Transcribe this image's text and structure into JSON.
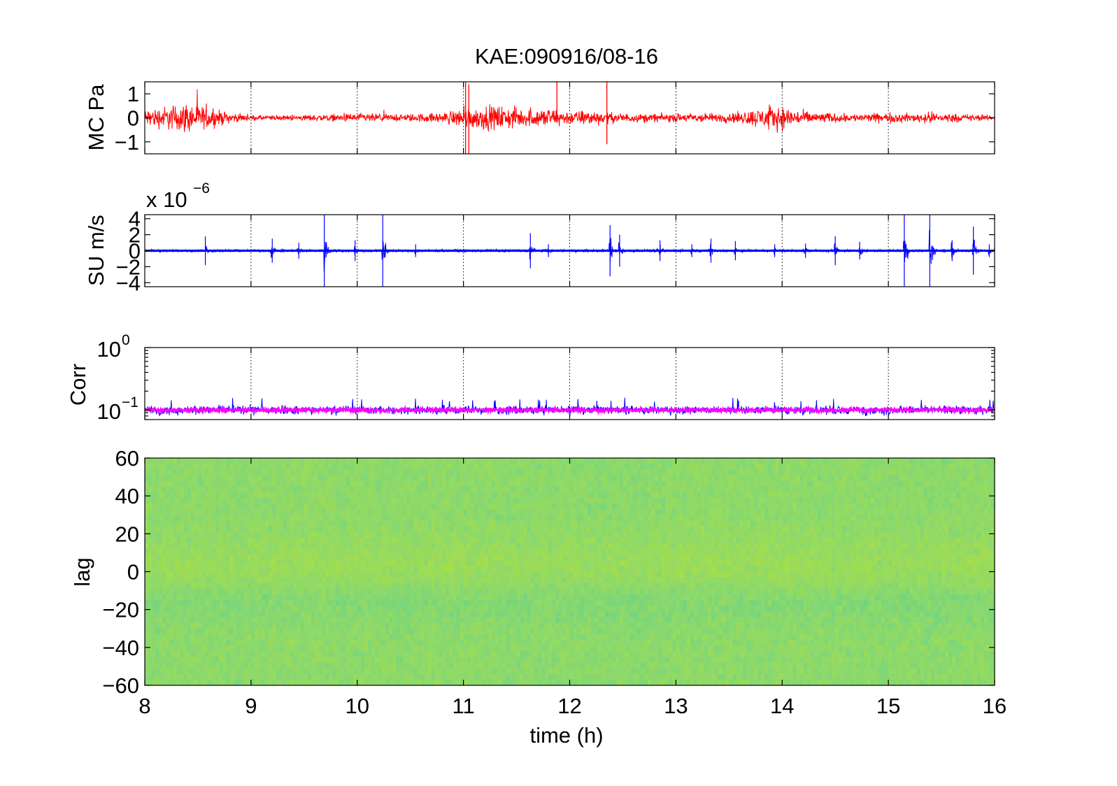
{
  "figure": {
    "title": "KAE:090916/08-16",
    "xlabel": "time (h)"
  },
  "chart_data": [
    {
      "type": "line",
      "name": "panel-mc",
      "ylabel": "MC Pa",
      "xlim": [
        8,
        16
      ],
      "ylim": [
        -1.5,
        1.5
      ],
      "yticks": [
        -1,
        0,
        1
      ],
      "ytick_labels": [
        "−1",
        "0",
        "1"
      ],
      "xticks": [
        8,
        9,
        10,
        11,
        12,
        13,
        14,
        15,
        16
      ],
      "grid_x": true,
      "series": [
        {
          "color": "#ff0000",
          "envelope_x": [
            8.0,
            8.2,
            8.4,
            8.6,
            8.8,
            9.0,
            9.2,
            9.4,
            9.6,
            9.8,
            10.0,
            10.2,
            10.4,
            10.6,
            10.8,
            11.0,
            11.2,
            11.4,
            11.6,
            11.8,
            12.0,
            12.2,
            12.4,
            12.6,
            12.8,
            13.0,
            13.2,
            13.4,
            13.6,
            13.8,
            14.0,
            14.2,
            14.4,
            14.6,
            14.8,
            15.0,
            15.2,
            15.4,
            15.6,
            15.8,
            16.0
          ],
          "envelope_amp": [
            0.5,
            0.7,
            0.9,
            0.6,
            0.3,
            0.15,
            0.15,
            0.15,
            0.2,
            0.2,
            0.25,
            0.25,
            0.2,
            0.25,
            0.3,
            0.6,
            0.7,
            0.7,
            0.5,
            0.6,
            0.4,
            0.45,
            0.3,
            0.25,
            0.25,
            0.25,
            0.3,
            0.25,
            0.35,
            0.6,
            0.7,
            0.4,
            0.3,
            0.25,
            0.25,
            0.3,
            0.25,
            0.35,
            0.25,
            0.2,
            0.15
          ],
          "spikes": [
            {
              "x": 11.02,
              "lo": -1.5,
              "hi": 1.5
            },
            {
              "x": 11.05,
              "lo": -1.5,
              "hi": 1.4
            },
            {
              "x": 11.88,
              "lo": -0.2,
              "hi": 1.5
            },
            {
              "x": 12.35,
              "lo": -1.1,
              "hi": 1.5
            }
          ]
        }
      ]
    },
    {
      "type": "line",
      "name": "panel-su",
      "ylabel": "SU m/s",
      "scale_exponent_label": "x 10",
      "scale_exponent": "−6",
      "xlim": [
        8,
        16
      ],
      "ylim": [
        -4.5e-06,
        4.5e-06
      ],
      "yticks": [
        -4,
        -2,
        0,
        2,
        4
      ],
      "ytick_labels": [
        "−4",
        "−2",
        "0",
        "2",
        "4"
      ],
      "xticks": [
        8,
        9,
        10,
        11,
        12,
        13,
        14,
        15,
        16
      ],
      "grid_x": true,
      "series": [
        {
          "color": "#0000ff",
          "baseline_amp": 0.25,
          "bursts": [
            {
              "x": 8.57,
              "amp": 1.8
            },
            {
              "x": 9.2,
              "amp": 1.5
            },
            {
              "x": 9.45,
              "amp": 1.0
            },
            {
              "x": 9.69,
              "amp": 4.5
            },
            {
              "x": 9.98,
              "amp": 1.3
            },
            {
              "x": 10.24,
              "amp": 4.5
            },
            {
              "x": 10.55,
              "amp": 0.8
            },
            {
              "x": 11.63,
              "amp": 2.2
            },
            {
              "x": 11.8,
              "amp": 0.8
            },
            {
              "x": 12.38,
              "amp": 3.2
            },
            {
              "x": 12.47,
              "amp": 2.0
            },
            {
              "x": 12.85,
              "amp": 1.3
            },
            {
              "x": 13.15,
              "amp": 0.8
            },
            {
              "x": 13.33,
              "amp": 1.5
            },
            {
              "x": 13.56,
              "amp": 1.2
            },
            {
              "x": 13.93,
              "amp": 0.8
            },
            {
              "x": 14.22,
              "amp": 0.9
            },
            {
              "x": 14.5,
              "amp": 1.8
            },
            {
              "x": 14.73,
              "amp": 1.1
            },
            {
              "x": 15.15,
              "amp": 4.5
            },
            {
              "x": 15.39,
              "amp": 4.5
            },
            {
              "x": 15.6,
              "amp": 1.3
            },
            {
              "x": 15.8,
              "amp": 3.0
            },
            {
              "x": 15.95,
              "amp": 0.8
            }
          ]
        }
      ]
    },
    {
      "type": "line",
      "name": "panel-corr",
      "ylabel": "Corr",
      "yscale": "log",
      "xlim": [
        8,
        16
      ],
      "ylim": [
        0.07,
        1.0
      ],
      "ytick_labels": [
        {
          "base": "10",
          "exp": "0",
          "value": 1.0
        },
        {
          "base": "10",
          "exp": "−1",
          "value": 0.1
        }
      ],
      "xticks": [
        8,
        9,
        10,
        11,
        12,
        13,
        14,
        15,
        16
      ],
      "grid_x": true,
      "series": [
        {
          "color": "#0000ff",
          "level": 0.1,
          "spread": 0.016
        },
        {
          "color": "#ff00ff",
          "level": 0.1,
          "spread": 0.007
        }
      ]
    },
    {
      "type": "heatmap",
      "name": "panel-lag",
      "ylabel": "lag",
      "xlim": [
        8,
        16
      ],
      "ylim": [
        -60,
        60
      ],
      "yticks": [
        -60,
        -40,
        -20,
        0,
        20,
        40,
        60
      ],
      "ytick_labels": [
        "−60",
        "−40",
        "−20",
        "0",
        "20",
        "40",
        "60"
      ],
      "xticks": [
        8,
        9,
        10,
        11,
        12,
        13,
        14,
        15,
        16
      ],
      "xtick_labels": [
        "8",
        "9",
        "10",
        "11",
        "12",
        "13",
        "14",
        "15",
        "16"
      ],
      "colors": {
        "low": "#1ec6c4",
        "mid": "#8ed96a",
        "high": "#e0e800"
      }
    }
  ]
}
